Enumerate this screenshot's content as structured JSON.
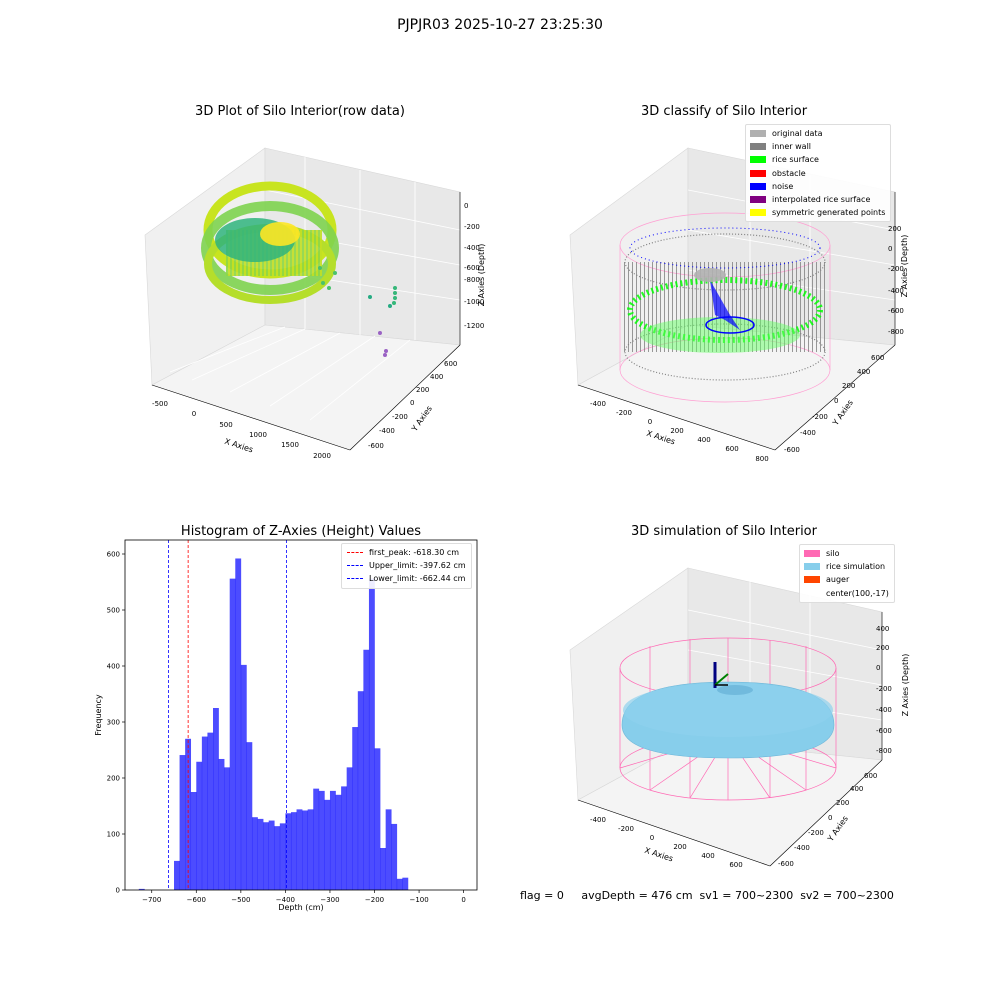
{
  "suptitle": "PJPJR03 2025-10-27 23:25:30",
  "footer": "flag = 0     avgDepth = 476 cm  sv1 = 700~2300  sv2 = 700~2300",
  "chart_data": [
    {
      "type": "scatter",
      "title": "3D Plot of Silo Interior(row data)",
      "xlabel": "X Axies",
      "ylabel": "Y Axies",
      "zlabel": "Z Axies (Depth)",
      "x_ticks": [
        "-500",
        "0",
        "500",
        "1000",
        "1500",
        "2000"
      ],
      "y_ticks": [
        "-600",
        "-400",
        "-200",
        "0",
        "200",
        "400",
        "600"
      ],
      "z_ticks": [
        "-1200",
        "-1000",
        "-800",
        "-600",
        "-400",
        "-200",
        "0"
      ]
    },
    {
      "type": "scatter",
      "title": "3D classify of Silo Interior",
      "xlabel": "X Axies",
      "ylabel": "Y Axies",
      "zlabel": "Z Axies (Depth)",
      "x_ticks": [
        "-400",
        "-200",
        "0",
        "200",
        "400",
        "600",
        "800"
      ],
      "y_ticks": [
        "-600",
        "-400",
        "-200",
        "0",
        "200",
        "400",
        "600"
      ],
      "z_ticks": [
        "-800",
        "-600",
        "-400",
        "-200",
        "0",
        "200"
      ],
      "legend": [
        {
          "label": "original data",
          "color": "#b0b0b0"
        },
        {
          "label": "inner wall",
          "color": "#808080"
        },
        {
          "label": "rice surface",
          "color": "#00ff00"
        },
        {
          "label": "obstacle",
          "color": "#ff0000"
        },
        {
          "label": "noise",
          "color": "#0000ff"
        },
        {
          "label": "interpolated rice surface",
          "color": "#800080"
        },
        {
          "label": "symmetric generated points",
          "color": "#ffff00"
        }
      ],
      "legend_position": "top-right"
    },
    {
      "type": "bar",
      "title": "Histogram of Z-Axies (Height) Values",
      "xlabel": "Depth (cm)",
      "ylabel": "Frequency",
      "xlim": [
        -760,
        30
      ],
      "ylim": [
        0,
        625
      ],
      "x_ticks": [
        -700,
        -600,
        -500,
        -400,
        -300,
        -200,
        -100,
        0
      ],
      "y_ticks": [
        0,
        100,
        200,
        300,
        400,
        500,
        600
      ],
      "bin_start": -650,
      "bin_width": 12.5,
      "values": [
        52,
        241,
        270,
        175,
        229,
        274,
        281,
        325,
        234,
        219,
        556,
        592,
        402,
        264,
        130,
        127,
        121,
        124,
        114,
        119,
        137,
        139,
        144,
        142,
        144,
        181,
        177,
        161,
        177,
        170,
        185,
        219,
        291,
        355,
        429,
        556,
        253,
        75,
        144,
        118,
        20,
        22
      ],
      "outlier_bins": [
        {
          "x": -729,
          "width": 12.5,
          "value": 2
        }
      ],
      "bar_color": "#0000ff",
      "vlines": [
        {
          "label": "first_peak: -618.30 cm",
          "x": -618.3,
          "color": "#ff0000"
        },
        {
          "label": "Upper_limit: -397.62 cm",
          "x": -397.62,
          "color": "#0000ff"
        },
        {
          "label": "Lower_limit: -662.44 cm",
          "x": -662.44,
          "color": "#0000ff"
        }
      ],
      "legend_position": "top-right",
      "grid": false
    },
    {
      "type": "scatter",
      "title": "3D simulation of Silo Interior",
      "xlabel": "X Axies",
      "ylabel": "Y Axies",
      "zlabel": "Z Axies (Depth)",
      "x_ticks": [
        "-400",
        "-200",
        "0",
        "200",
        "400",
        "600"
      ],
      "y_ticks": [
        "-600",
        "-400",
        "-200",
        "0",
        "200",
        "400",
        "600"
      ],
      "z_ticks": [
        "-800",
        "-600",
        "-400",
        "-200",
        "0",
        "200",
        "400"
      ],
      "legend": [
        {
          "label": "silo",
          "color": "#ff69b4"
        },
        {
          "label": "rice simulation",
          "color": "#87ceeb"
        },
        {
          "label": "auger",
          "color": "#ff4500"
        },
        {
          "label": "center(100,-17)",
          "color": ""
        }
      ],
      "legend_position": "top-right"
    }
  ]
}
